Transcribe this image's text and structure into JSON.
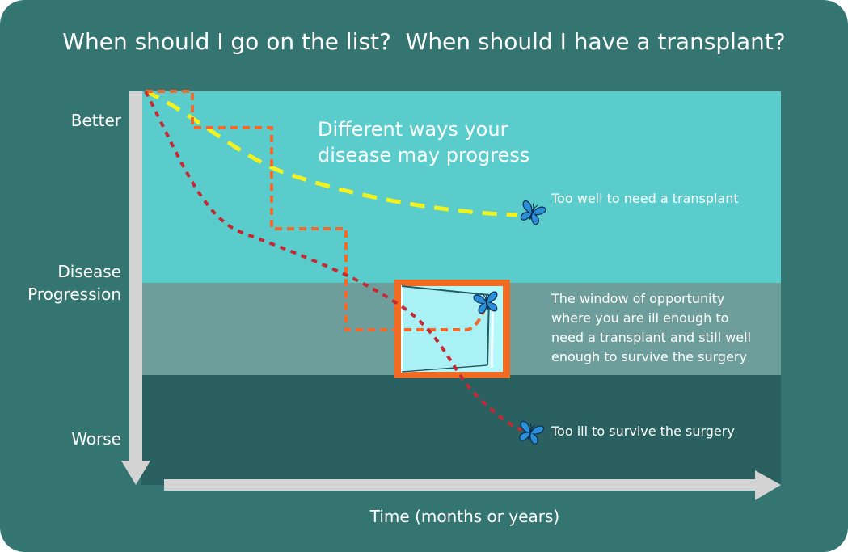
{
  "title": "When should I go on the list?  When should I have a transplant?",
  "y_axis": {
    "top_label": "Better",
    "middle_label_line1": "Disease",
    "middle_label_line2": "Progression",
    "bottom_label": "Worse"
  },
  "x_axis": {
    "label": "Time (months or years)"
  },
  "caption_line1": "Different ways your",
  "caption_line2": "disease may progress",
  "notes": {
    "too_well": "Too well to need a transplant",
    "window_line1": "The window of opportunity",
    "window_line2": "where you are ill enough to",
    "window_line3": "need a transplant and still well",
    "window_line4": "enough to survive the surgery",
    "too_ill": "Too ill to survive the surgery"
  },
  "colors": {
    "background": "#347572",
    "zone_well": "#5bcccc",
    "zone_window": "#6d9e9b",
    "zone_ill": "#2a6060",
    "axis": "#d3d3d3",
    "path_yellow": "#f2f21f",
    "path_orange": "#f06a2c",
    "path_red": "#c42a32",
    "window_frame": "#f26b21",
    "window_glass": "#b3f8fa",
    "butterfly": "#2b8fd9"
  },
  "icons": {
    "butterfly": "butterfly-icon",
    "window": "window-icon"
  }
}
